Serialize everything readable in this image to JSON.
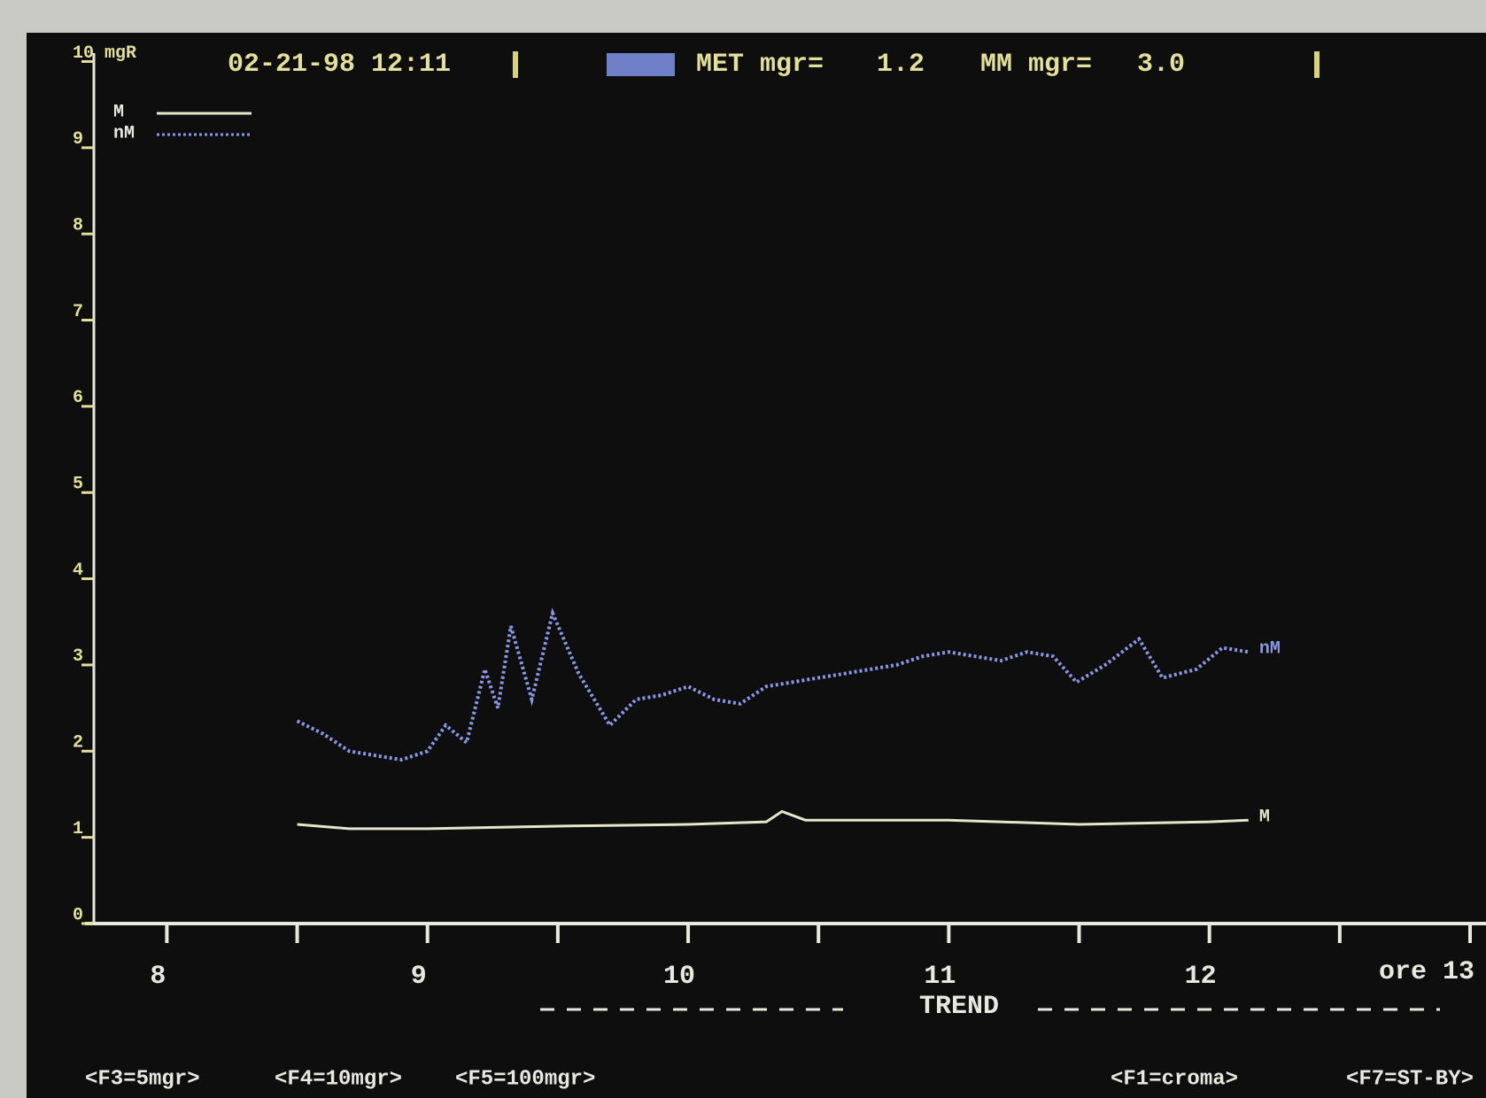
{
  "header": {
    "datetime": "02-21-98 12:11",
    "readouts": [
      {
        "label": "MET mgr=",
        "value": "1.2"
      },
      {
        "label": "MM mgr=",
        "value": "3.0"
      }
    ]
  },
  "footer": {
    "left_keys": [
      "<F3=5mgr>",
      "<F4=10mgr>",
      "<F5=100mgr>"
    ],
    "right_keys": [
      "<F1=croma>",
      "<F7=ST-BY>"
    ]
  },
  "chart_data": {
    "type": "line",
    "x_label": "TREND",
    "xlim": [
      7.72,
      13
    ],
    "xticks": [
      8,
      9,
      10,
      11,
      12,
      {
        "value": 13,
        "label": "ore 13"
      }
    ],
    "xminor_ticks": [
      8.5,
      9.5,
      10.5,
      11.5,
      12.5
    ],
    "ylim": [
      0,
      10.2
    ],
    "yticks": [
      0,
      1,
      2,
      3,
      4,
      5,
      6,
      7,
      8,
      9,
      {
        "value": 10,
        "label": "10 mgR"
      }
    ],
    "series": [
      {
        "name": "M",
        "color": "#e6e6cc",
        "style": "solid",
        "x": [
          8.5,
          8.7,
          9.0,
          9.5,
          10.0,
          10.3,
          10.36,
          10.45,
          10.6,
          11.0,
          11.5,
          12.0,
          12.15
        ],
        "values": [
          1.15,
          1.1,
          1.1,
          1.13,
          1.15,
          1.18,
          1.3,
          1.2,
          1.2,
          1.2,
          1.15,
          1.18,
          1.2
        ]
      },
      {
        "name": "nM",
        "color": "#8a96e6",
        "style": "dotted",
        "x": [
          8.5,
          8.6,
          8.7,
          8.8,
          8.9,
          9.0,
          9.07,
          9.15,
          9.22,
          9.27,
          9.32,
          9.4,
          9.48,
          9.58,
          9.7,
          9.8,
          9.9,
          10.0,
          10.1,
          10.2,
          10.3,
          10.4,
          10.5,
          10.6,
          10.7,
          10.8,
          10.9,
          11.0,
          11.1,
          11.2,
          11.3,
          11.4,
          11.49,
          11.6,
          11.73,
          11.82,
          11.95,
          12.05,
          12.15
        ],
        "values": [
          2.35,
          2.2,
          2.0,
          1.95,
          1.9,
          2.0,
          2.3,
          2.1,
          2.95,
          2.5,
          3.45,
          2.6,
          3.6,
          2.9,
          2.3,
          2.6,
          2.65,
          2.75,
          2.6,
          2.55,
          2.75,
          2.8,
          2.85,
          2.9,
          2.95,
          3.0,
          3.1,
          3.15,
          3.1,
          3.05,
          3.15,
          3.1,
          2.8,
          3.0,
          3.3,
          2.85,
          2.95,
          3.2,
          3.15
        ]
      }
    ]
  }
}
